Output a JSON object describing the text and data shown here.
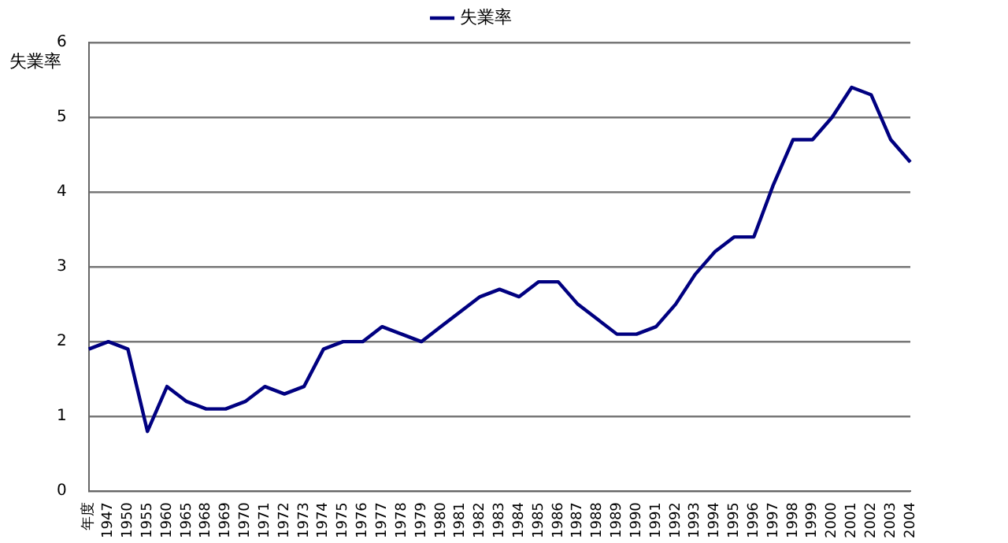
{
  "chart_data": {
    "type": "line",
    "ylabel": "失業率",
    "categories": [
      "年度",
      "1947",
      "1950",
      "1955",
      "1960",
      "1965",
      "1968",
      "1969",
      "1970",
      "1971",
      "1972",
      "1973",
      "1974",
      "1975",
      "1976",
      "1977",
      "1978",
      "1979",
      "1980",
      "1981",
      "1982",
      "1983",
      "1984",
      "1985",
      "1986",
      "1987",
      "1988",
      "1989",
      "1990",
      "1991",
      "1992",
      "1993",
      "1994",
      "1995",
      "1996",
      "1997",
      "1998",
      "1999",
      "2000",
      "2001",
      "2002",
      "2003",
      "2004"
    ],
    "series": [
      {
        "name": "失業率",
        "color": "#000080",
        "values": [
          1.9,
          2.0,
          1.9,
          0.8,
          1.4,
          1.2,
          1.1,
          1.1,
          1.2,
          1.4,
          1.3,
          1.4,
          1.9,
          2.0,
          2.0,
          2.2,
          2.1,
          2.0,
          2.2,
          2.4,
          2.6,
          2.7,
          2.6,
          2.8,
          2.8,
          2.5,
          2.3,
          2.1,
          2.1,
          2.2,
          2.5,
          2.9,
          3.2,
          3.4,
          3.4,
          4.1,
          4.7,
          4.7,
          5.0,
          5.4,
          5.3,
          4.7,
          4.4
        ]
      }
    ],
    "ylim": [
      0,
      6
    ],
    "yticks": [
      0,
      1,
      2,
      3,
      4,
      5,
      6
    ],
    "grid": "y",
    "legend": "top",
    "marker": "none",
    "line_style": "solid"
  }
}
